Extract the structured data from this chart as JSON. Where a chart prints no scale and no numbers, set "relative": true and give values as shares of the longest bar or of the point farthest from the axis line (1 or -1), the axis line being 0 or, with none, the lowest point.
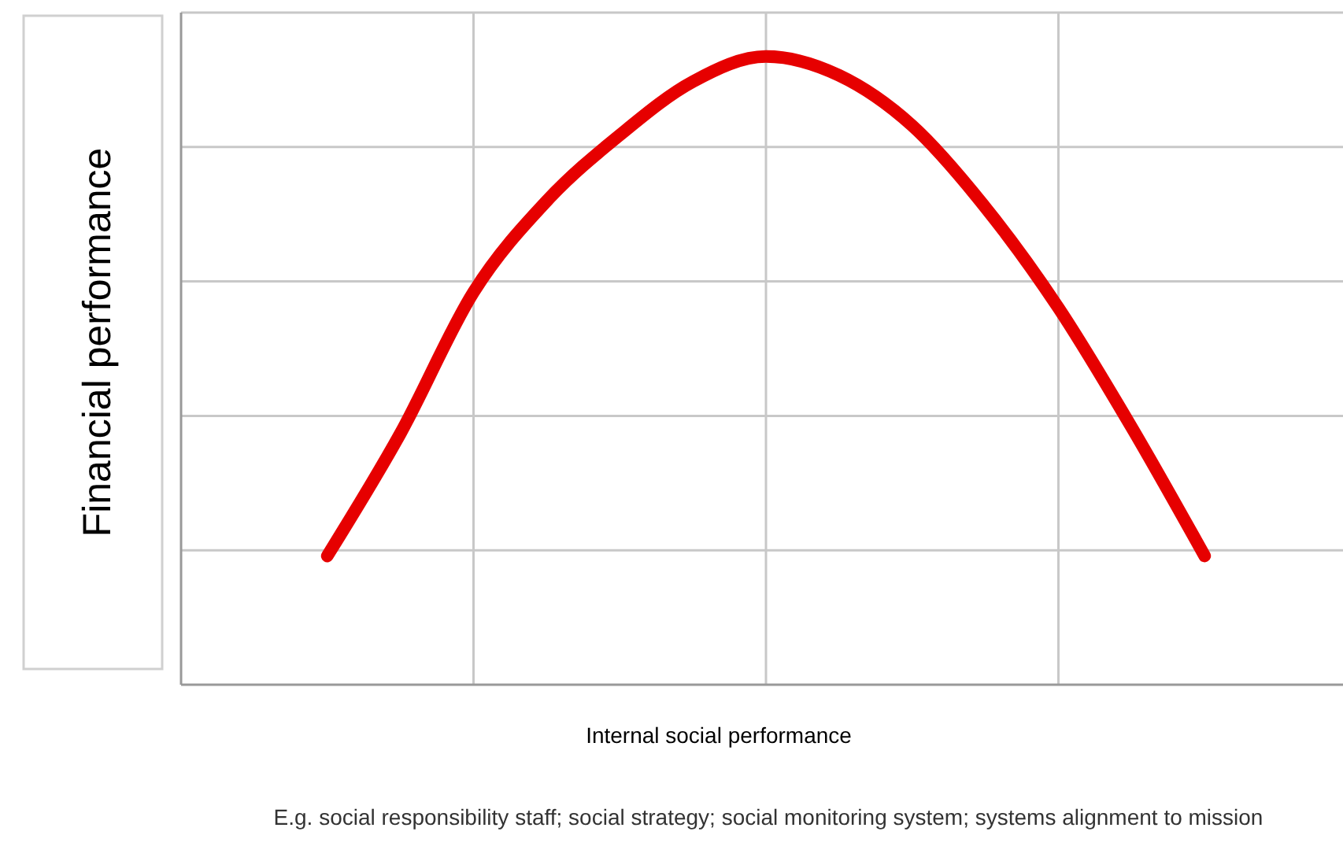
{
  "chart_data": {
    "type": "line",
    "relative": true,
    "xlabel": "Internal social performance",
    "ylabel": "Financial performance",
    "annotations": [
      "E.g. social responsibility staff; social strategy; social monitoring system; systems alignment to mission"
    ],
    "categories": [
      null,
      null,
      null,
      null,
      null,
      null,
      null,
      null,
      null,
      null,
      null,
      null,
      null,
      null,
      null,
      null,
      null
    ],
    "series": [
      {
        "color": "#e60000",
        "values": [
          null,
          null,
          0.205,
          0.4,
          0.625,
          0.77,
          0.875,
          0.96,
          1,
          0.97,
          0.89,
          0.76,
          0.6,
          0.41,
          0.205,
          null,
          null
        ]
      }
    ],
    "grid": true,
    "marker": "none",
    "line_style": "solid"
  }
}
